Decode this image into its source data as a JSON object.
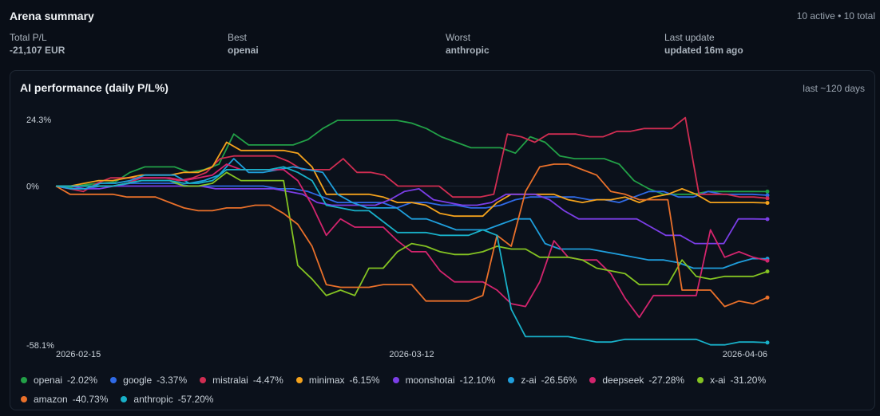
{
  "header": {
    "title": "Arena summary",
    "counts": "10 active • 10 total"
  },
  "stats": [
    {
      "label": "Total P/L",
      "value": "-21,107 EUR"
    },
    {
      "label": "Best",
      "value": "openai"
    },
    {
      "label": "Worst",
      "value": "anthropic"
    },
    {
      "label": "Last update",
      "value": "updated 16m ago"
    }
  ],
  "panel": {
    "title": "AI performance (daily P/L%)",
    "range": "last ~120 days"
  },
  "chart_data": {
    "type": "line",
    "title": "AI performance (daily P/L%)",
    "ylim": [
      -58.1,
      24.3
    ],
    "y_ticks": [
      "24.3%",
      "0%",
      "-58.1%"
    ],
    "x_ticks": [
      "2026-02-15",
      "2026-03-12",
      "2026-04-06"
    ],
    "x_tick_index": [
      0,
      20,
      40
    ],
    "series": [
      {
        "name": "openai",
        "label": "-2.02%",
        "color": "#22a047",
        "values": [
          0,
          -0.5,
          0.5,
          1,
          1.5,
          5,
          7,
          7,
          7,
          5,
          6,
          8,
          19,
          15,
          15,
          15,
          15,
          17,
          21,
          24,
          24,
          24,
          24,
          24,
          23,
          21,
          18,
          16,
          14,
          14,
          14,
          12,
          18,
          16,
          11,
          10,
          10,
          10,
          8,
          2,
          -1,
          -3,
          -3,
          -3,
          -2,
          -2,
          -2,
          -2,
          -2.02
        ]
      },
      {
        "name": "google",
        "label": "-3.37%",
        "color": "#2f6ae6",
        "values": [
          0,
          -1,
          -1,
          0,
          0,
          1,
          1,
          1,
          1,
          0,
          0,
          0,
          0,
          0,
          0,
          -1,
          -1,
          -2,
          -4,
          -6,
          -6,
          -6,
          -6,
          -8,
          -6,
          -6,
          -7,
          -7,
          -8,
          -8,
          -7,
          -5,
          -4,
          -4,
          -4,
          -4,
          -5,
          -5,
          -6,
          -4,
          -2,
          -2,
          -4,
          -4,
          -2,
          -3,
          -3,
          -3,
          -3.37
        ]
      },
      {
        "name": "mistralai",
        "label": "-4.47%",
        "color": "#d02d52",
        "values": [
          0,
          -1,
          -2,
          1,
          3,
          3,
          3,
          3,
          3,
          2,
          3,
          5,
          10,
          11,
          11,
          11,
          11,
          9,
          6,
          6,
          6,
          10,
          5,
          5,
          4,
          0,
          0,
          0,
          0,
          -4,
          -4,
          -4,
          -3,
          19,
          18,
          16,
          19,
          19,
          19,
          18,
          18,
          20,
          20,
          21,
          21,
          21,
          25,
          -3,
          -3,
          -3,
          -4,
          -4,
          -4.47
        ]
      },
      {
        "name": "minimax",
        "label": "-6.15%",
        "color": "#f4a21c",
        "values": [
          0,
          0,
          1,
          2,
          2,
          3,
          4,
          4,
          4,
          5,
          5,
          7,
          16,
          13,
          13,
          13,
          13,
          12,
          7,
          -3,
          -3,
          -3,
          -3,
          -4,
          -6,
          -6,
          -7,
          -10,
          -11,
          -11,
          -11,
          -6,
          -3,
          -3,
          -3,
          -3,
          -5,
          -6,
          -5,
          -5,
          -4,
          -6,
          -4,
          -3,
          -1,
          -3,
          -6,
          -6,
          -6,
          -6,
          -6.15
        ]
      },
      {
        "name": "moonshotai",
        "label": "-12.10%",
        "color": "#7b3ee6",
        "values": [
          0,
          0,
          -1,
          -1,
          0,
          0,
          0,
          0,
          0,
          0,
          0,
          -1,
          -1,
          -1,
          -1,
          -1,
          -2,
          -3,
          -6,
          -7,
          -7,
          -7,
          -7,
          -5,
          -2,
          -1,
          -5,
          -6,
          -7,
          -7,
          -6,
          -3,
          -3,
          -3,
          -5,
          -9,
          -12,
          -12,
          -12,
          -12,
          -12,
          -15,
          -18,
          -18,
          -21,
          -21,
          -21,
          -12,
          -12,
          -12.1
        ]
      },
      {
        "name": "z-ai",
        "label": "-26.56%",
        "color": "#1f9edc",
        "values": [
          0,
          -1,
          -1,
          1,
          1,
          2,
          4,
          4,
          4,
          1,
          2,
          4,
          10,
          5,
          5,
          6,
          7,
          6,
          5,
          -3,
          -6,
          -8,
          -8,
          -8,
          -12,
          -12,
          -14,
          -16,
          -16,
          -16,
          -14,
          -12,
          -12,
          -21,
          -23,
          -23,
          -23,
          -24,
          -25,
          -26,
          -27,
          -27,
          -28,
          -30,
          -30,
          -30,
          -28,
          -26.5,
          -26.56
        ]
      },
      {
        "name": "deepseek",
        "label": "-27.28%",
        "color": "#d2246d",
        "values": [
          0,
          0,
          0,
          0,
          0,
          1,
          3,
          3,
          3,
          2,
          3,
          4,
          8,
          6,
          6,
          6,
          6,
          2,
          -7,
          -18,
          -12,
          -15,
          -15,
          -15,
          -20,
          -24,
          -24,
          -31,
          -35,
          -35,
          -35,
          -38,
          -43,
          -44,
          -35,
          -20,
          -26,
          -27,
          -27,
          -32,
          -41,
          -48,
          -40,
          -40,
          -40,
          -40,
          -16,
          -26,
          -24,
          -26,
          -27.28
        ]
      },
      {
        "name": "x-ai",
        "label": "-31.20%",
        "color": "#84c322",
        "values": [
          0,
          0,
          0,
          0,
          0,
          1,
          2,
          2,
          2,
          0,
          0,
          1,
          5,
          2,
          2,
          2,
          2,
          -29,
          -34,
          -40,
          -38,
          -40,
          -30,
          -30,
          -24,
          -21,
          -22,
          -24,
          -25,
          -25,
          -24,
          -22,
          -23,
          -23,
          -26,
          -26,
          -26,
          -27,
          -30,
          -31,
          -32,
          -36,
          -36,
          -36,
          -27,
          -33,
          -34,
          -33,
          -33,
          -33,
          -31.2
        ]
      },
      {
        "name": "amazon",
        "label": "-40.73%",
        "color": "#e9702a",
        "values": [
          0,
          -3,
          -3,
          -3,
          -3,
          -4,
          -4,
          -4,
          -6,
          -8,
          -9,
          -9,
          -8,
          -8,
          -7,
          -7,
          -10,
          -14,
          -22,
          -36,
          -37,
          -37,
          -37,
          -36,
          -36,
          -36,
          -42,
          -42,
          -42,
          -42,
          -40,
          -18,
          -22,
          -2,
          7,
          8,
          8,
          6,
          4,
          -2,
          -3,
          -5,
          -5,
          -5,
          -38,
          -38,
          -38,
          -44,
          -42,
          -43,
          -40.73
        ]
      },
      {
        "name": "anthropic",
        "label": "-57.20%",
        "color": "#18b0c8",
        "values": [
          0,
          0,
          0,
          0,
          0,
          1,
          2,
          2,
          2,
          1,
          1,
          2,
          6,
          6,
          6,
          6,
          7,
          5,
          2,
          -7,
          -8,
          -9,
          -9,
          -13,
          -17,
          -17,
          -17,
          -18,
          -18,
          -18,
          -16,
          -18,
          -45,
          -55,
          -55,
          -55,
          -55,
          -56,
          -57,
          -57,
          -56,
          -56,
          -56,
          -56,
          -56,
          -56,
          -58,
          -58,
          -57,
          -57,
          -57.2
        ]
      }
    ]
  }
}
